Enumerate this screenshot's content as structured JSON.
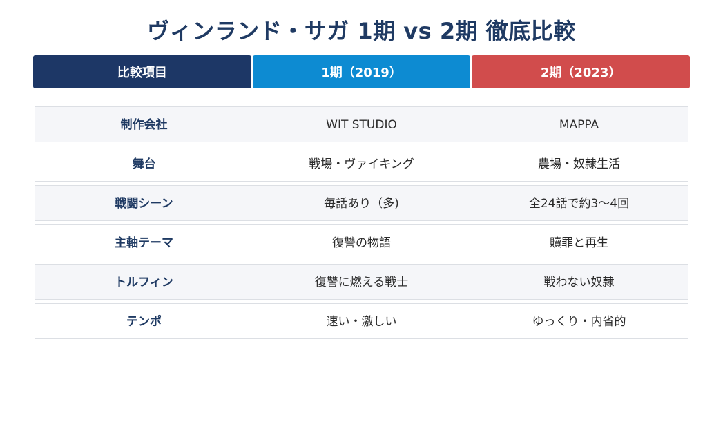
{
  "title": "ヴィンランド・サガ 1期 vs 2期 徹底比較",
  "headers": {
    "item": "比較項目",
    "season1": "1期（2019）",
    "season2": "2期（2023）"
  },
  "colors": {
    "title": "#1f3a63",
    "header_item": "#1d3766",
    "header_season1": "#0d8bd2",
    "header_season2": "#d14c4c",
    "row_alt": "#f5f6f9"
  },
  "rows": [
    {
      "item": "制作会社",
      "season1": "WIT STUDIO",
      "season2": "MAPPA"
    },
    {
      "item": "舞台",
      "season1": "戦場・ヴァイキング",
      "season2": "農場・奴隷生活"
    },
    {
      "item": "戦闘シーン",
      "season1": "毎話あり（多)",
      "season2": "全24話で約3〜4回"
    },
    {
      "item": "主軸テーマ",
      "season1": "復讐の物語",
      "season2": "贖罪と再生"
    },
    {
      "item": "トルフィン",
      "season1": "復讐に燃える戦士",
      "season2": "戦わない奴隷"
    },
    {
      "item": "テンポ",
      "season1": "速い・激しい",
      "season2": "ゆっくり・内省的"
    }
  ]
}
